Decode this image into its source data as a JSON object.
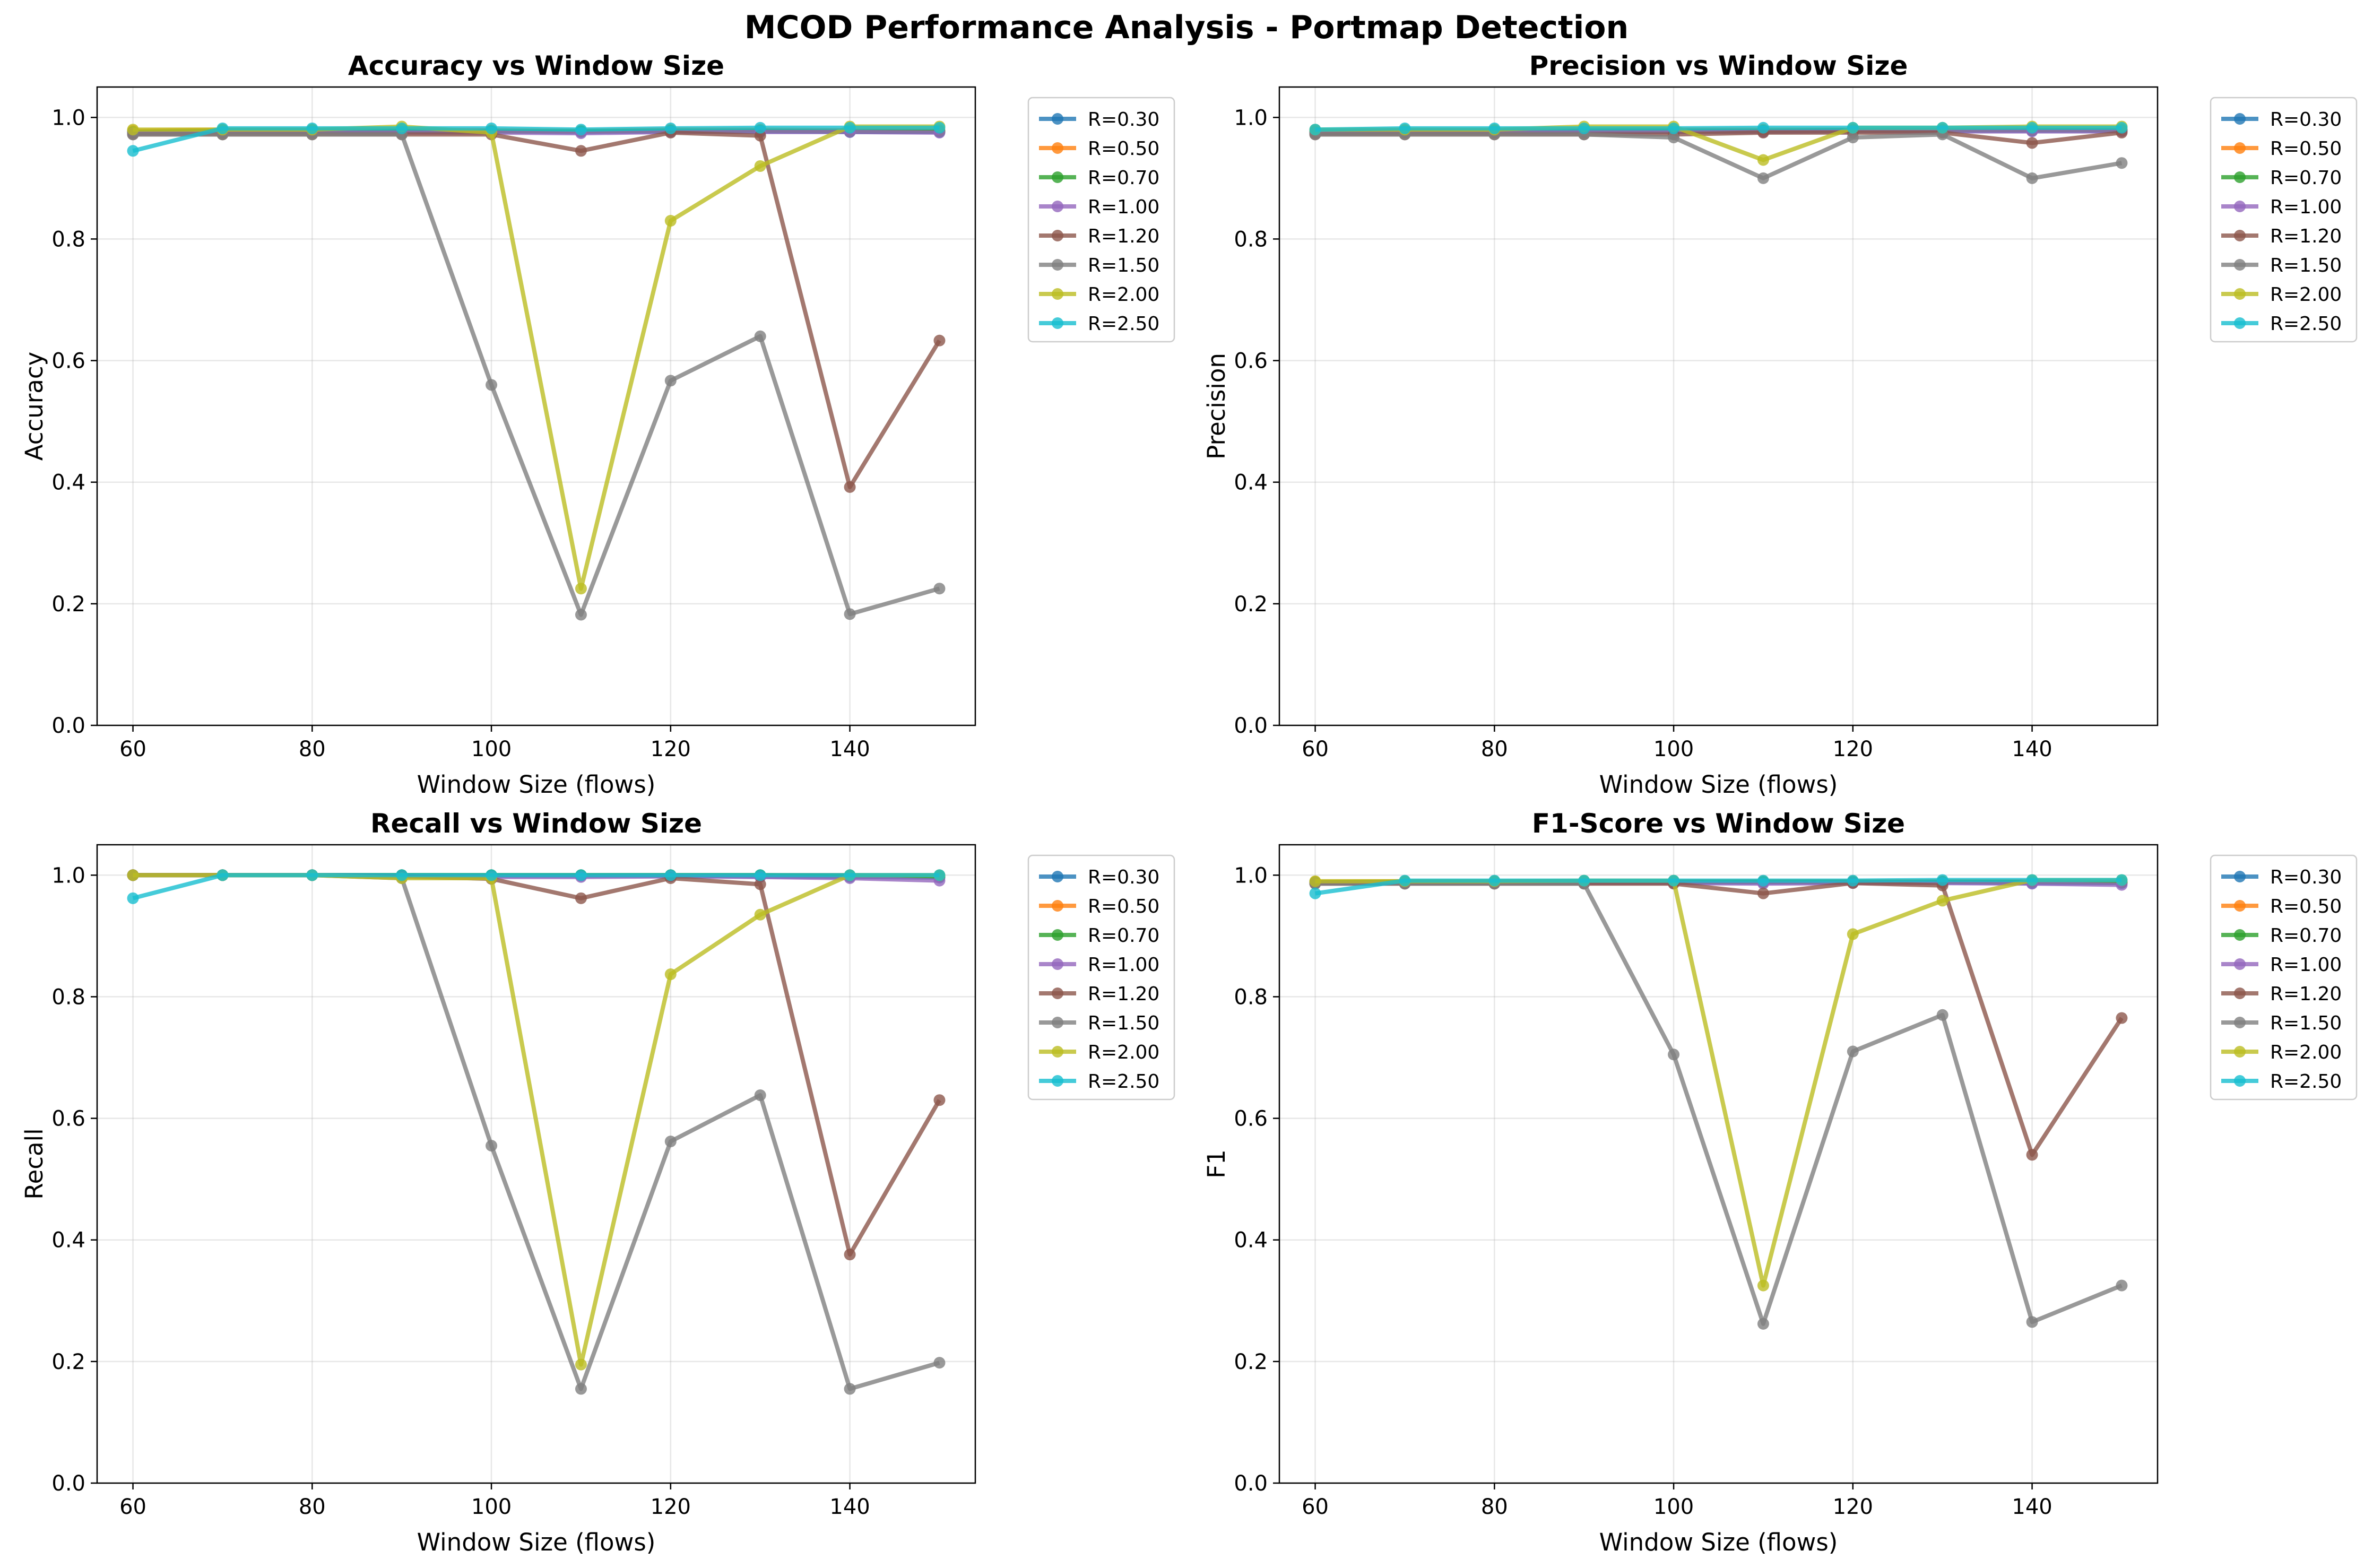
{
  "figure": {
    "title": "MCOD Performance Analysis - Portmap Detection"
  },
  "colors": {
    "R=0.30": "#1f77b4",
    "R=0.50": "#ff7f0e",
    "R=0.70": "#2ca02c",
    "R=1.00": "#9467bd",
    "R=1.20": "#8c564b",
    "R=1.50": "#7f7f7f",
    "R=2.00": "#bcbd22",
    "R=2.50": "#17becf"
  },
  "chart_data": [
    {
      "type": "line",
      "title": "Accuracy vs Window Size",
      "xlabel": "Window Size (flows)",
      "ylabel": "Accuracy",
      "xlim": [
        56,
        154
      ],
      "ylim": [
        0,
        1.05
      ],
      "xticks": [
        60,
        80,
        100,
        120,
        140
      ],
      "yticks": [
        0.0,
        0.2,
        0.4,
        0.6,
        0.8,
        1.0
      ],
      "grid": true,
      "legend": "outside-upper-right",
      "x": [
        60,
        70,
        80,
        90,
        100,
        110,
        120,
        130,
        140,
        150
      ],
      "series": [
        {
          "name": "R=0.30",
          "values": [
            0.975,
            0.977,
            0.977,
            0.977,
            0.977,
            0.976,
            0.977,
            0.977,
            0.976,
            0.976
          ]
        },
        {
          "name": "R=0.50",
          "values": [
            0.978,
            0.98,
            0.98,
            0.98,
            0.979,
            0.978,
            0.98,
            0.98,
            0.979,
            0.979
          ]
        },
        {
          "name": "R=0.70",
          "values": [
            0.976,
            0.978,
            0.978,
            0.978,
            0.977,
            0.977,
            0.978,
            0.978,
            0.977,
            0.977
          ]
        },
        {
          "name": "R=1.00",
          "values": [
            0.974,
            0.975,
            0.975,
            0.975,
            0.975,
            0.974,
            0.976,
            0.976,
            0.976,
            0.975
          ]
        },
        {
          "name": "R=1.20",
          "values": [
            0.972,
            0.972,
            0.972,
            0.972,
            0.972,
            0.945,
            0.975,
            0.97,
            0.392,
            0.633
          ]
        },
        {
          "name": "R=1.50",
          "values": [
            0.972,
            0.972,
            0.972,
            0.972,
            0.56,
            0.182,
            0.567,
            0.64,
            0.183,
            0.225
          ]
        },
        {
          "name": "R=2.00",
          "values": [
            0.98,
            0.98,
            0.98,
            0.985,
            0.975,
            0.225,
            0.83,
            0.92,
            0.985,
            0.985
          ]
        },
        {
          "name": "R=2.50",
          "values": [
            0.945,
            0.982,
            0.982,
            0.982,
            0.982,
            0.98,
            0.982,
            0.983,
            0.983,
            0.983
          ]
        }
      ]
    },
    {
      "type": "line",
      "title": "Precision vs Window Size",
      "xlabel": "Window Size (flows)",
      "ylabel": "Precision",
      "xlim": [
        56,
        154
      ],
      "ylim": [
        0,
        1.05
      ],
      "xticks": [
        60,
        80,
        100,
        120,
        140
      ],
      "yticks": [
        0.0,
        0.2,
        0.4,
        0.6,
        0.8,
        1.0
      ],
      "grid": true,
      "legend": "outside-upper-right",
      "x": [
        60,
        70,
        80,
        90,
        100,
        110,
        120,
        130,
        140,
        150
      ],
      "series": [
        {
          "name": "R=0.30",
          "values": [
            0.975,
            0.976,
            0.976,
            0.977,
            0.977,
            0.977,
            0.978,
            0.978,
            0.978,
            0.978
          ]
        },
        {
          "name": "R=0.50",
          "values": [
            0.978,
            0.979,
            0.979,
            0.98,
            0.98,
            0.98,
            0.98,
            0.98,
            0.98,
            0.98
          ]
        },
        {
          "name": "R=0.70",
          "values": [
            0.976,
            0.977,
            0.977,
            0.978,
            0.978,
            0.978,
            0.979,
            0.979,
            0.979,
            0.979
          ]
        },
        {
          "name": "R=1.00",
          "values": [
            0.974,
            0.975,
            0.975,
            0.976,
            0.976,
            0.976,
            0.977,
            0.977,
            0.977,
            0.977
          ]
        },
        {
          "name": "R=1.20",
          "values": [
            0.972,
            0.972,
            0.972,
            0.972,
            0.972,
            0.975,
            0.975,
            0.975,
            0.958,
            0.975
          ]
        },
        {
          "name": "R=1.50",
          "values": [
            0.972,
            0.972,
            0.972,
            0.972,
            0.967,
            0.9,
            0.967,
            0.972,
            0.9,
            0.925
          ]
        },
        {
          "name": "R=2.00",
          "values": [
            0.98,
            0.98,
            0.98,
            0.985,
            0.985,
            0.93,
            0.983,
            0.983,
            0.985,
            0.985
          ]
        },
        {
          "name": "R=2.50",
          "values": [
            0.98,
            0.982,
            0.982,
            0.982,
            0.982,
            0.983,
            0.983,
            0.983,
            0.983,
            0.983
          ]
        }
      ]
    },
    {
      "type": "line",
      "title": "Recall vs Window Size",
      "xlabel": "Window Size (flows)",
      "ylabel": "Recall",
      "xlim": [
        56,
        154
      ],
      "ylim": [
        0,
        1.05
      ],
      "xticks": [
        60,
        80,
        100,
        120,
        140
      ],
      "yticks": [
        0.0,
        0.2,
        0.4,
        0.6,
        0.8,
        1.0
      ],
      "grid": true,
      "legend": "outside-upper-right",
      "x": [
        60,
        70,
        80,
        90,
        100,
        110,
        120,
        130,
        140,
        150
      ],
      "series": [
        {
          "name": "R=0.30",
          "values": [
            1.0,
            1.0,
            1.0,
            1.0,
            0.999,
            0.999,
            0.999,
            0.998,
            0.997,
            0.996
          ]
        },
        {
          "name": "R=0.50",
          "values": [
            1.0,
            1.0,
            1.0,
            1.0,
            1.0,
            1.0,
            1.0,
            1.0,
            1.0,
            0.999
          ]
        },
        {
          "name": "R=0.70",
          "values": [
            1.0,
            1.0,
            1.0,
            1.0,
            1.0,
            1.0,
            1.0,
            1.0,
            0.999,
            0.998
          ]
        },
        {
          "name": "R=1.00",
          "values": [
            1.0,
            1.0,
            1.0,
            0.998,
            0.997,
            0.997,
            0.998,
            0.997,
            0.995,
            0.991
          ]
        },
        {
          "name": "R=1.20",
          "values": [
            1.0,
            1.0,
            1.0,
            0.998,
            0.994,
            0.962,
            0.995,
            0.985,
            0.376,
            0.63
          ]
        },
        {
          "name": "R=1.50",
          "values": [
            1.0,
            1.0,
            1.0,
            0.995,
            0.555,
            0.155,
            0.562,
            0.638,
            0.155,
            0.198
          ]
        },
        {
          "name": "R=2.00",
          "values": [
            1.0,
            1.0,
            1.0,
            0.995,
            0.995,
            0.195,
            0.837,
            0.935,
            1.0,
            1.0
          ]
        },
        {
          "name": "R=2.50",
          "values": [
            0.962,
            1.0,
            1.0,
            1.0,
            1.0,
            1.0,
            1.0,
            1.0,
            1.0,
            1.0
          ]
        }
      ]
    },
    {
      "type": "line",
      "title": "F1-Score vs Window Size",
      "xlabel": "Window Size (flows)",
      "ylabel": "F1",
      "xlim": [
        56,
        154
      ],
      "ylim": [
        0,
        1.05
      ],
      "xticks": [
        60,
        80,
        100,
        120,
        140
      ],
      "yticks": [
        0.0,
        0.2,
        0.4,
        0.6,
        0.8,
        1.0
      ],
      "grid": true,
      "legend": "outside-upper-right",
      "x": [
        60,
        70,
        80,
        90,
        100,
        110,
        120,
        130,
        140,
        150
      ],
      "series": [
        {
          "name": "R=0.30",
          "values": [
            0.987,
            0.988,
            0.988,
            0.988,
            0.988,
            0.988,
            0.988,
            0.988,
            0.987,
            0.987
          ]
        },
        {
          "name": "R=0.50",
          "values": [
            0.989,
            0.99,
            0.99,
            0.99,
            0.99,
            0.99,
            0.99,
            0.99,
            0.99,
            0.989
          ]
        },
        {
          "name": "R=0.70",
          "values": [
            0.988,
            0.989,
            0.989,
            0.989,
            0.989,
            0.989,
            0.989,
            0.989,
            0.989,
            0.988
          ]
        },
        {
          "name": "R=1.00",
          "values": [
            0.987,
            0.987,
            0.987,
            0.987,
            0.987,
            0.986,
            0.987,
            0.987,
            0.986,
            0.984
          ]
        },
        {
          "name": "R=1.20",
          "values": [
            0.986,
            0.986,
            0.986,
            0.986,
            0.986,
            0.97,
            0.987,
            0.983,
            0.54,
            0.765
          ]
        },
        {
          "name": "R=1.50",
          "values": [
            0.986,
            0.986,
            0.986,
            0.986,
            0.705,
            0.262,
            0.71,
            0.77,
            0.265,
            0.325
          ]
        },
        {
          "name": "R=2.00",
          "values": [
            0.99,
            0.99,
            0.99,
            0.991,
            0.991,
            0.325,
            0.903,
            0.958,
            0.992,
            0.992
          ]
        },
        {
          "name": "R=2.50",
          "values": [
            0.97,
            0.991,
            0.991,
            0.991,
            0.991,
            0.991,
            0.991,
            0.992,
            0.992,
            0.992
          ]
        }
      ]
    }
  ]
}
